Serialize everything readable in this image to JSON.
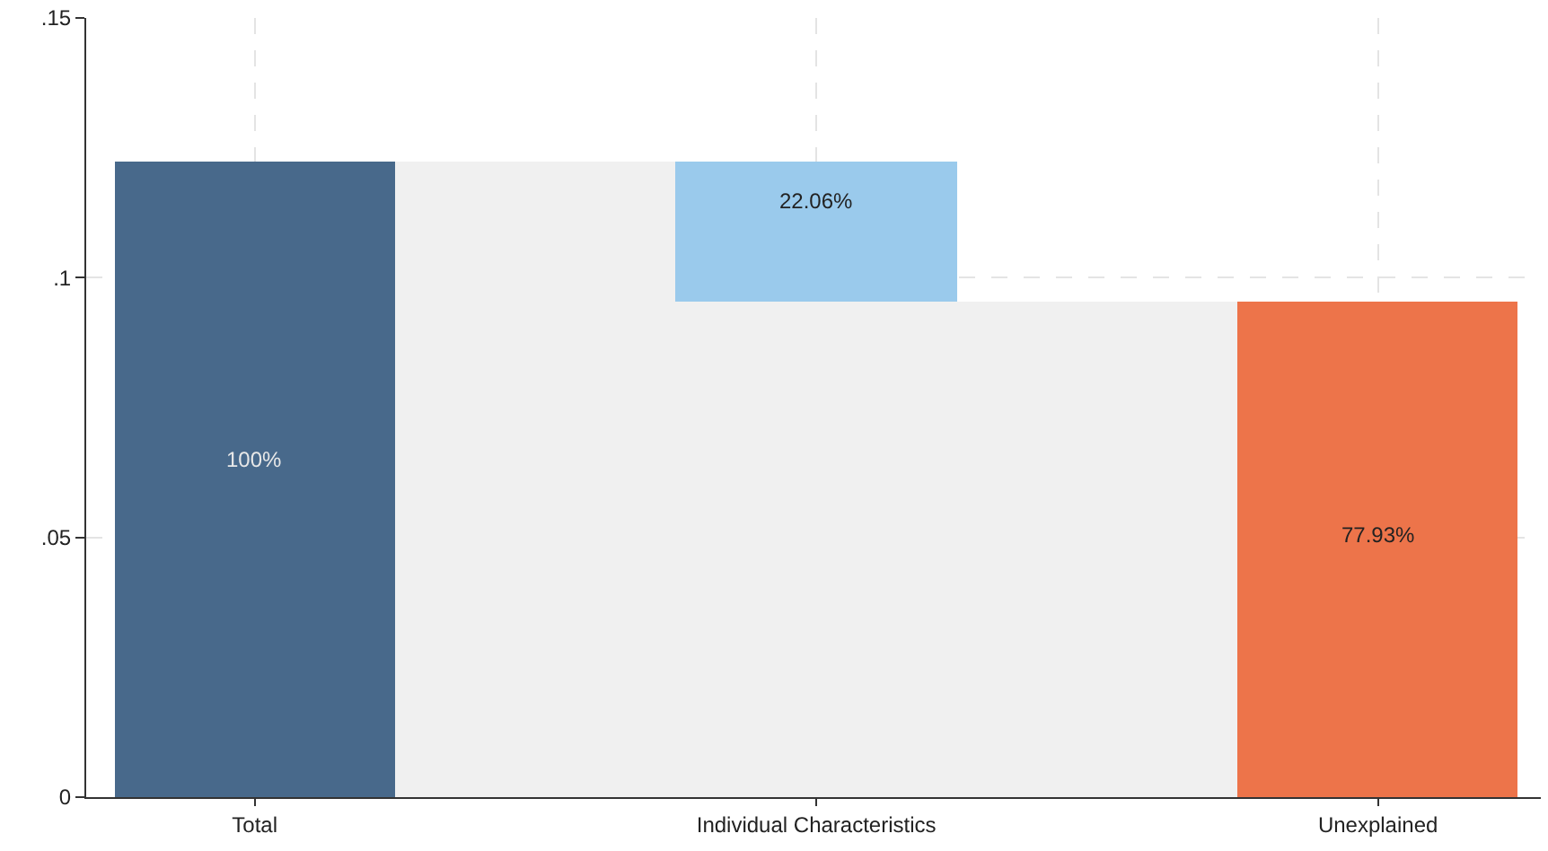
{
  "chart_data": {
    "type": "bar",
    "categories": [
      "Total",
      null,
      "Individual Characteristics",
      null,
      "Unexplained"
    ],
    "series": [
      {
        "color": "#f0f0f0",
        "values": [
          null,
          0.1224,
          0.0955,
          0.0955,
          null
        ]
      },
      {
        "colors": [
          "#48698b",
          null,
          "#9acaec",
          null,
          "#ed744a"
        ],
        "values": [
          0.1224,
          null,
          0.0269,
          null,
          0.0955
        ],
        "base": [
          0,
          null,
          0.0955,
          null,
          0
        ]
      }
    ],
    "annotations": [
      "100%",
      "22.06%",
      "77.93%"
    ],
    "ylim": [
      0,
      0.15
    ],
    "yticks": [
      {
        "value": 0,
        "label": "0"
      },
      {
        "value": 0.05,
        "label": ".05"
      },
      {
        "value": 0.1,
        "label": ".1"
      },
      {
        "value": 0.15,
        "label": ".15"
      }
    ],
    "grid": true
  }
}
